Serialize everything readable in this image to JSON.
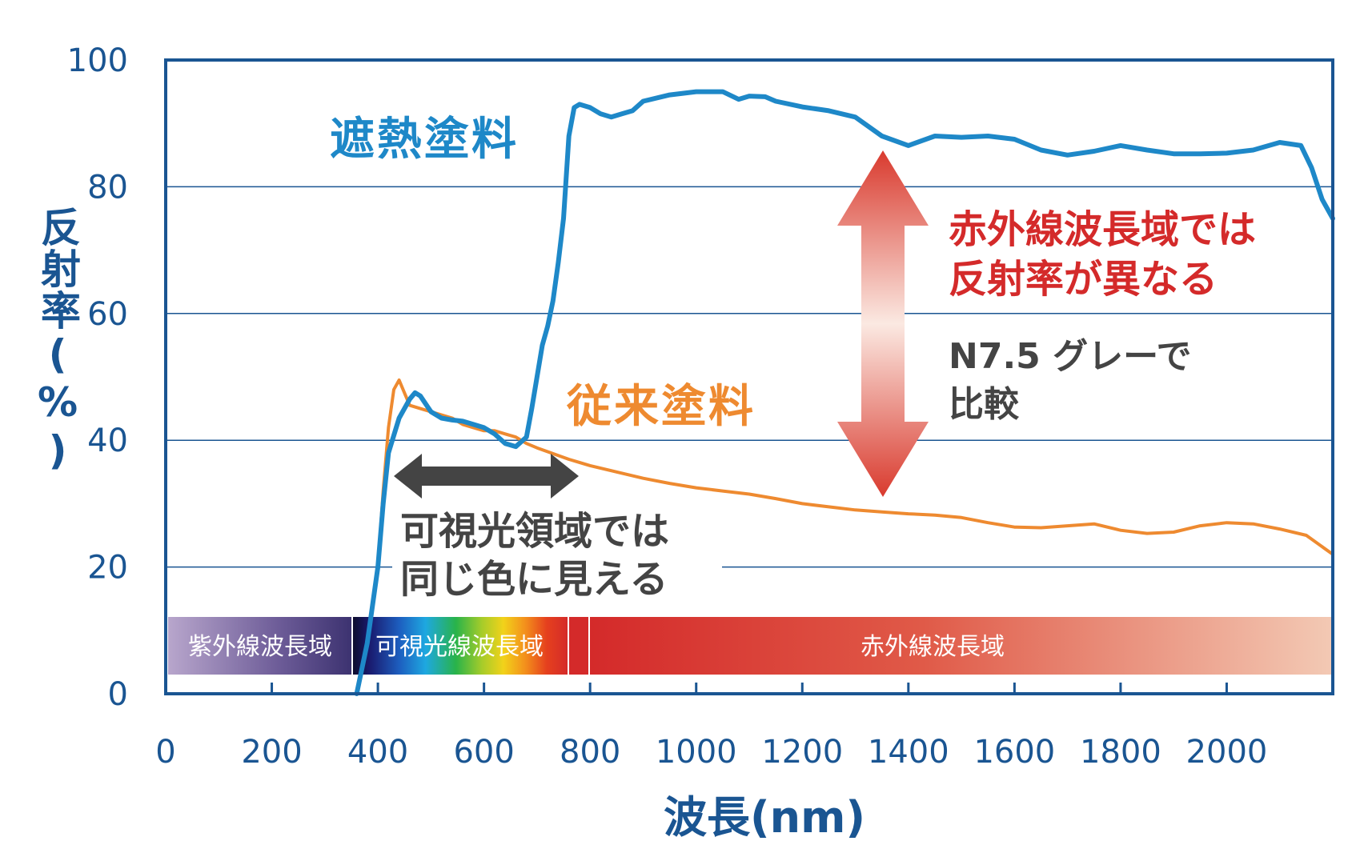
{
  "colors": {
    "axis": "#1a5592",
    "grid": "#1a5592",
    "thermal": "#1e88c8",
    "conventional": "#ee8a30",
    "annotation_red": "#d42a2a",
    "annotation_dark": "#444444",
    "arrow_dark": "#444444"
  },
  "chart_data": {
    "type": "line",
    "xlabel": "波長(nm)",
    "ylabel": "反射率(%)",
    "xlim": [
      0,
      2200
    ],
    "ylim": [
      0,
      100
    ],
    "x_ticks": [
      0,
      200,
      400,
      600,
      800,
      1000,
      1200,
      1400,
      1600,
      1800,
      2000
    ],
    "y_ticks": [
      0,
      20,
      40,
      60,
      80,
      100
    ],
    "grid": "horizontal",
    "series": [
      {
        "name": "遮熱塗料",
        "x": [
          360,
          380,
          400,
          410,
          420,
          440,
          460,
          470,
          480,
          500,
          520,
          540,
          560,
          580,
          600,
          620,
          640,
          660,
          680,
          690,
          700,
          710,
          720,
          730,
          740,
          750,
          760,
          770,
          780,
          800,
          820,
          840,
          860,
          880,
          900,
          950,
          1000,
          1050,
          1080,
          1100,
          1130,
          1150,
          1200,
          1250,
          1300,
          1350,
          1400,
          1450,
          1500,
          1550,
          1600,
          1650,
          1700,
          1750,
          1800,
          1850,
          1900,
          1950,
          2000,
          2050,
          2100,
          2140,
          2160,
          2180,
          2200
        ],
        "y": [
          0,
          8,
          20,
          30,
          38,
          43.5,
          46.5,
          47.5,
          47,
          44.5,
          43.5,
          43.2,
          43,
          42.5,
          42,
          41,
          39.5,
          39,
          40.5,
          45,
          50,
          55,
          58,
          62,
          68,
          75,
          88,
          92.5,
          93,
          92.5,
          91.5,
          91,
          91.5,
          92,
          93.5,
          94.5,
          95,
          95,
          93.8,
          94.3,
          94.2,
          93.5,
          92.6,
          92,
          91,
          88,
          86.5,
          88,
          87.8,
          88,
          87.5,
          85.8,
          85,
          85.6,
          86.5,
          85.8,
          85.2,
          85.2,
          85.3,
          85.8,
          87,
          86.5,
          83,
          78,
          75
        ]
      },
      {
        "name": "従来塗料",
        "x": [
          360,
          380,
          400,
          410,
          420,
          430,
          440,
          450,
          460,
          480,
          500,
          520,
          540,
          560,
          580,
          600,
          620,
          640,
          660,
          680,
          700,
          720,
          740,
          760,
          780,
          800,
          850,
          900,
          950,
          1000,
          1050,
          1100,
          1150,
          1200,
          1250,
          1300,
          1350,
          1400,
          1450,
          1500,
          1550,
          1600,
          1650,
          1700,
          1750,
          1800,
          1850,
          1900,
          1950,
          2000,
          2050,
          2100,
          2150,
          2200
        ],
        "y": [
          0,
          8,
          20,
          32,
          42,
          48,
          49.5,
          47.5,
          45.5,
          45,
          44.5,
          44,
          43.5,
          42.5,
          42,
          41.5,
          41.5,
          41,
          40.5,
          39.5,
          38.8,
          38.2,
          37.6,
          37,
          36.5,
          36,
          35,
          34,
          33.2,
          32.5,
          32,
          31.5,
          30.8,
          30,
          29.5,
          29,
          28.7,
          28.4,
          28.2,
          27.8,
          27,
          26.3,
          26.2,
          26.5,
          26.8,
          25.8,
          25.3,
          25.5,
          26.5,
          27,
          26.8,
          26,
          25,
          22
        ]
      }
    ],
    "annotations": {
      "thermal_label": "遮熱塗料",
      "conventional_label": "従来塗料",
      "visible_note_line1": "可視光領域では",
      "visible_note_line2": "同じ色に見える",
      "ir_note_line1": "赤外線波長域では",
      "ir_note_line2": "反射率が異なる",
      "gray_note_line1": "N7.5 グレーで",
      "gray_note_line2": "比較"
    },
    "bands": [
      {
        "label": "紫外線波長域",
        "from": 0,
        "to": 355
      },
      {
        "label": "可視光線波長域",
        "from": 355,
        "to": 760
      },
      {
        "label": "赤外線波長域",
        "from": 760,
        "to": 2200
      }
    ]
  }
}
